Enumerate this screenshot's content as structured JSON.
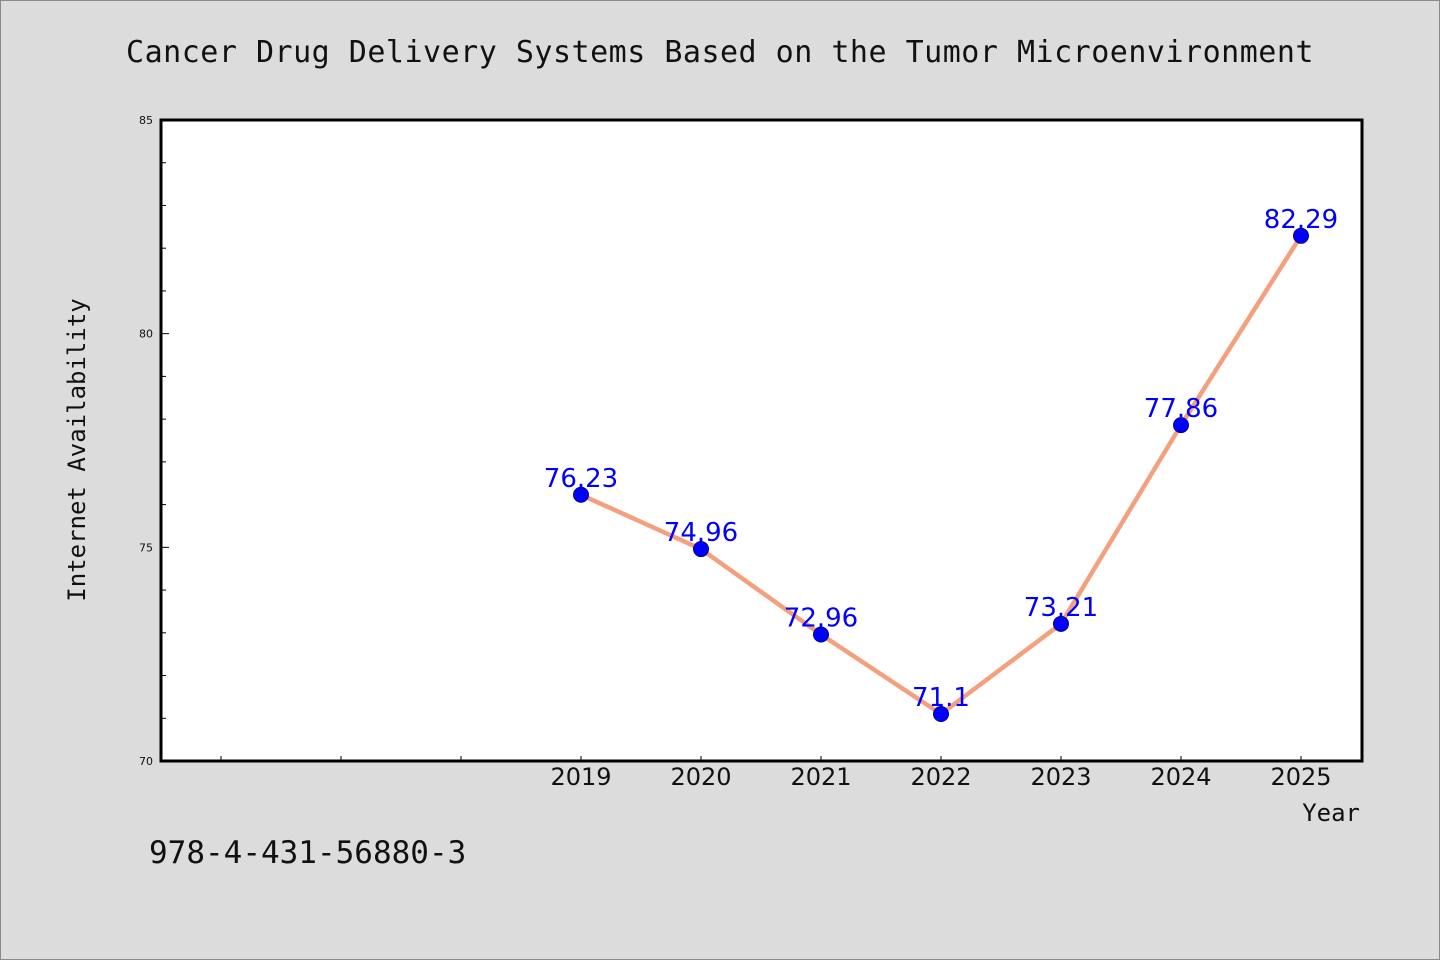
{
  "chart_data": {
    "type": "line",
    "title": "Cancer Drug Delivery Systems Based on the Tumor Microenvironment",
    "xlabel": "Year",
    "ylabel": "Internet Availability",
    "x": [
      "2019",
      "2020",
      "2021",
      "2022",
      "2023",
      "2024",
      "2025"
    ],
    "values": [
      76.23,
      74.96,
      72.96,
      71.1,
      73.21,
      77.86,
      82.29
    ],
    "data_labels": [
      "76.23",
      "74.96",
      "72.96",
      "71.1",
      "73.21",
      "77.86",
      "82.29"
    ],
    "ylim": [
      70,
      85
    ],
    "yticks": [
      "70",
      "75",
      "80",
      "85"
    ],
    "grid": false,
    "legend": "none",
    "colors": {
      "line": "#f4a07e",
      "marker": "#0000ff",
      "label": "#0000ff"
    }
  },
  "footer": {
    "isbn": "978-4-431-56880-3"
  }
}
